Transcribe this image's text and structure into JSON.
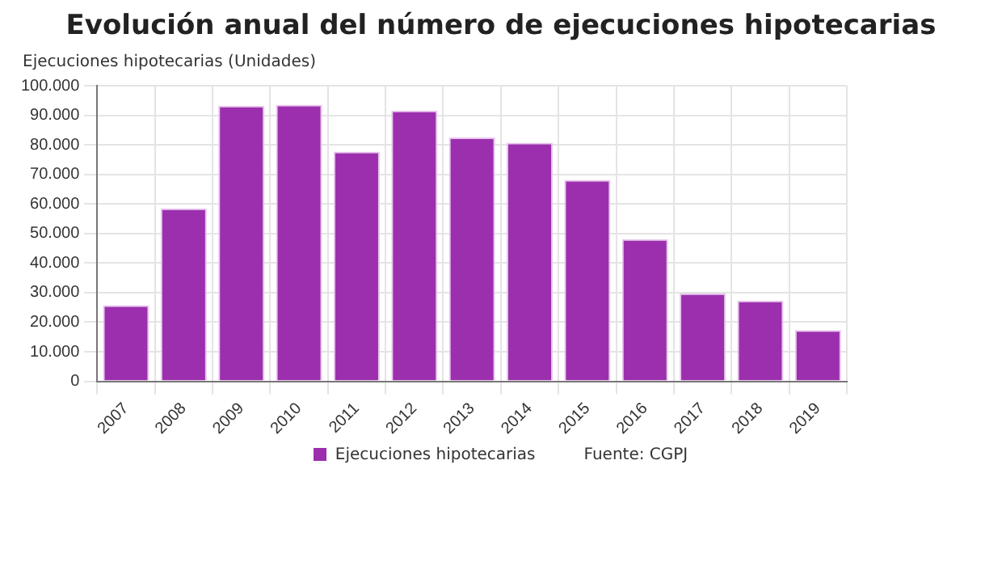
{
  "chart_data": {
    "type": "bar",
    "title": "Evolución anual del número de ejecuciones hipotecarias",
    "ylabel": "Ejecuciones hipotecarias (Unidades)",
    "categories": [
      "2007",
      "2008",
      "2009",
      "2010",
      "2011",
      "2012",
      "2013",
      "2014",
      "2015",
      "2016",
      "2017",
      "2018",
      "2019"
    ],
    "series": [
      {
        "name": "Ejecuciones hipotecarias",
        "color": "#9c2fae",
        "values": [
          25700,
          58500,
          93200,
          93600,
          77700,
          91600,
          82500,
          80700,
          68100,
          48100,
          29800,
          27300,
          17300
        ]
      }
    ],
    "ylim": [
      0,
      100000
    ],
    "yticks": [
      {
        "value": 0,
        "label": "0"
      },
      {
        "value": 10000,
        "label": "10.000"
      },
      {
        "value": 20000,
        "label": "20.000"
      },
      {
        "value": 30000,
        "label": "30.000"
      },
      {
        "value": 40000,
        "label": "40.000"
      },
      {
        "value": 50000,
        "label": "50.000"
      },
      {
        "value": 60000,
        "label": "60.000"
      },
      {
        "value": 70000,
        "label": "70.000"
      },
      {
        "value": 80000,
        "label": "80.000"
      },
      {
        "value": 90000,
        "label": "90.000"
      },
      {
        "value": 100000,
        "label": "100.000"
      }
    ],
    "grid": true,
    "legend": "bottom",
    "annotations": [
      "Fuente: CGPJ"
    ]
  }
}
